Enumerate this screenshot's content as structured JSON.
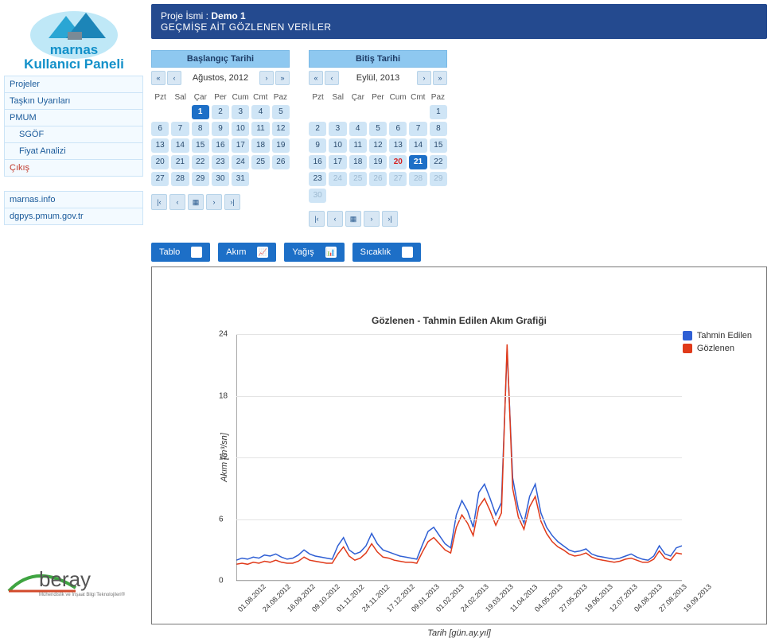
{
  "brand": {
    "line1": "marnas",
    "line2": "Kullanıcı Paneli"
  },
  "sidebar": {
    "items": [
      {
        "label": "Projeler"
      },
      {
        "label": "Taşkın Uyarıları"
      },
      {
        "label": "PMUM"
      },
      {
        "label": "SGÖF"
      },
      {
        "label": "Fiyat Analizi"
      },
      {
        "label": "Çıkış"
      }
    ],
    "links": [
      {
        "label": "marnas.info"
      },
      {
        "label": "dgpys.pmum.gov.tr"
      }
    ]
  },
  "footer": {
    "brand": "beray",
    "tagline": "Mühendislik ve İnşaat Bilgi Teknolojileri®"
  },
  "header": {
    "prefix": "Proje İsmi : ",
    "name": "Demo 1",
    "subtitle": "GEÇMİŞE AİT GÖZLENEN VERİLER"
  },
  "cal_start": {
    "title": "Başlangıç Tarihi",
    "month": "Ağustos, 2012",
    "dow": [
      "Pzt",
      "Sal",
      "Çar",
      "Per",
      "Cum",
      "Cmt",
      "Paz"
    ],
    "lead_blanks": 2,
    "ndays": 31,
    "selected": 1
  },
  "cal_end": {
    "title": "Bitiş Tarihi",
    "month": "Eylül, 2013",
    "dow": [
      "Pzt",
      "Sal",
      "Çar",
      "Per",
      "Cum",
      "Cmt",
      "Paz"
    ],
    "lead_blanks": 6,
    "ndays": 30,
    "selected": 21,
    "marked": [
      20
    ],
    "faded": [
      24,
      25,
      26,
      27,
      28,
      29,
      30
    ]
  },
  "tabs": [
    {
      "label": "Tablo",
      "icon": "≣"
    },
    {
      "label": "Akım",
      "icon": "📈"
    },
    {
      "label": "Yağış",
      "icon": "📊"
    },
    {
      "label": "Sıcaklık",
      "icon": "🌡"
    }
  ],
  "chart": {
    "title": "Gözlenen - Tahmin Edilen Akım Grafiği",
    "ylabel": "Akım [m³/sn]",
    "xlabel": "Tarih [gün.ay.yıl]",
    "legend": [
      {
        "label": "Tahmin Edilen",
        "color": "#2f5fd4"
      },
      {
        "label": "Gözlenen",
        "color": "#e03a1a"
      }
    ],
    "ylim": [
      0,
      24
    ],
    "yticks": [
      0,
      6,
      12,
      18,
      24
    ],
    "xticks": [
      "01.08.2012",
      "24.08.2012",
      "16.09.2012",
      "09.10.2012",
      "01.11.2012",
      "24.11.2012",
      "17.12.2012",
      "09.01.2013",
      "01.02.2013",
      "24.02.2013",
      "19.03.2013",
      "11.04.2013",
      "04.05.2013",
      "27.05.2013",
      "19.06.2013",
      "12.07.2013",
      "04.08.2013",
      "27.08.2013",
      "19.09.2013"
    ],
    "colors": {
      "tahmin": "#2f5fd4",
      "gozlenen": "#e03a1a",
      "grid": "#e4e4e4",
      "axis": "#555555",
      "bg": "#ffffff"
    },
    "line_width": 1.5,
    "n": 80,
    "series": {
      "tahmin": [
        2.0,
        2.2,
        2.1,
        2.3,
        2.2,
        2.5,
        2.4,
        2.6,
        2.3,
        2.1,
        2.2,
        2.5,
        3.0,
        2.6,
        2.4,
        2.3,
        2.2,
        2.1,
        3.4,
        4.2,
        3.0,
        2.6,
        2.8,
        3.4,
        4.6,
        3.6,
        3.0,
        2.8,
        2.6,
        2.4,
        2.3,
        2.2,
        2.1,
        3.5,
        4.8,
        5.2,
        4.4,
        3.6,
        3.2,
        6.4,
        7.8,
        6.8,
        5.2,
        8.6,
        9.4,
        8.0,
        6.4,
        7.6,
        22.5,
        10.0,
        7.0,
        5.6,
        8.2,
        9.4,
        6.6,
        5.2,
        4.4,
        3.8,
        3.4,
        3.0,
        2.8,
        2.9,
        3.1,
        2.6,
        2.4,
        2.3,
        2.2,
        2.1,
        2.2,
        2.4,
        2.6,
        2.3,
        2.1,
        2.0,
        2.4,
        3.4,
        2.6,
        2.4,
        3.2,
        3.4
      ],
      "gozlenen": [
        1.6,
        1.7,
        1.6,
        1.8,
        1.7,
        1.9,
        1.8,
        2.0,
        1.8,
        1.7,
        1.7,
        1.9,
        2.3,
        2.0,
        1.9,
        1.8,
        1.7,
        1.7,
        2.6,
        3.3,
        2.4,
        2.0,
        2.2,
        2.7,
        3.6,
        2.8,
        2.3,
        2.2,
        2.0,
        1.9,
        1.8,
        1.8,
        1.7,
        2.8,
        3.8,
        4.2,
        3.6,
        3.0,
        2.7,
        5.2,
        6.4,
        5.6,
        4.4,
        7.2,
        8.0,
        6.8,
        5.4,
        6.6,
        23.0,
        9.0,
        6.2,
        5.0,
        7.2,
        8.2,
        5.8,
        4.6,
        3.8,
        3.3,
        3.0,
        2.6,
        2.4,
        2.5,
        2.7,
        2.3,
        2.1,
        2.0,
        1.9,
        1.8,
        1.9,
        2.1,
        2.2,
        2.0,
        1.8,
        1.8,
        2.1,
        2.9,
        2.2,
        2.0,
        2.7,
        2.6
      ]
    }
  }
}
